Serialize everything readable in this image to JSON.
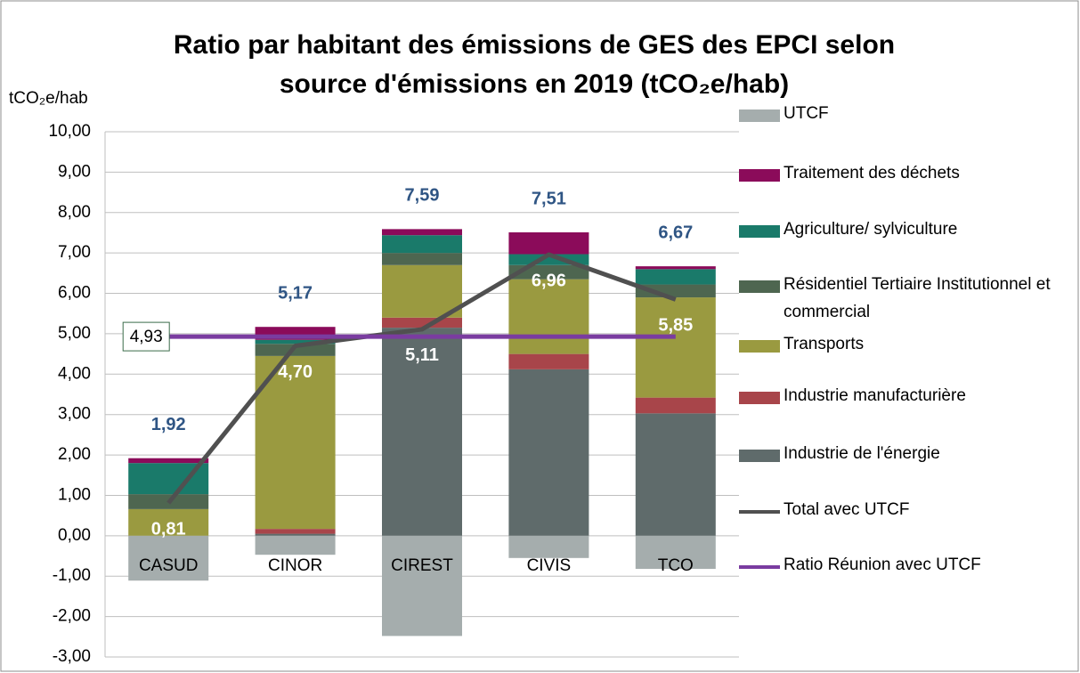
{
  "chart_data": {
    "type": "bar",
    "stacked": true,
    "title": [
      "Ratio par habitant des émissions de GES des EPCI selon",
      "source d'émissions en 2019 (tCO₂e/hab)"
    ],
    "y_label": "tCO₂e/hab",
    "categories": [
      "CASUD",
      "CINOR",
      "CIREST",
      "CIVIS",
      "TCO"
    ],
    "series": [
      {
        "name": "Industrie de l'énergie",
        "color": "#5f6b6b",
        "values": [
          0,
          0.05,
          5.15,
          4.12,
          3.03
        ]
      },
      {
        "name": "Industrie manufacturière",
        "color": "#a8454a",
        "values": [
          0,
          0.12,
          0.25,
          0.38,
          0.39
        ]
      },
      {
        "name": "Transports",
        "color": "#9a9a40",
        "values": [
          0.66,
          4.28,
          1.3,
          1.85,
          2.48
        ]
      },
      {
        "name": "Résidentiel Tertiaire Institutionnel et commercial",
        "color": "#4e6650",
        "values": [
          0.37,
          0.3,
          0.3,
          0.35,
          0.32
        ]
      },
      {
        "name": "Agriculture/ sylviculture",
        "color": "#1a7a6a",
        "values": [
          0.77,
          0.1,
          0.44,
          0.27,
          0.38
        ]
      },
      {
        "name": "Traitement des déchets",
        "color": "#8b0b5a",
        "values": [
          0.12,
          0.32,
          0.15,
          0.54,
          0.07
        ]
      },
      {
        "name": "UTCF",
        "color": "#a5adad",
        "values": [
          -1.11,
          -0.47,
          -2.48,
          -0.55,
          -0.82
        ]
      }
    ],
    "lines": [
      {
        "name": "Total avec UTCF",
        "color": "#505050",
        "values": [
          0.81,
          4.7,
          5.11,
          6.96,
          5.85
        ],
        "value_labels": [
          "0,81",
          "4,70",
          "5,11",
          "6,96",
          "5,85"
        ]
      },
      {
        "name": "Ratio Réunion avec UTCF",
        "color": "#7a3ca0",
        "values": [
          4.93,
          4.93,
          4.93,
          4.93,
          4.93
        ],
        "value_labels": [
          "4,93",
          null,
          null,
          null,
          null
        ]
      }
    ],
    "total_labels": {
      "values": [
        1.92,
        5.17,
        7.59,
        7.51,
        6.67
      ],
      "value_labels": [
        "1,92",
        "5,17",
        "7,59",
        "7,51",
        "6,67"
      ]
    },
    "ylim": [
      -3,
      10
    ],
    "yticks": [
      {
        "value": -3,
        "label": "-3,00"
      },
      {
        "value": -2,
        "label": "-2,00"
      },
      {
        "value": -1,
        "label": "-1,00"
      },
      {
        "value": 0,
        "label": "0,00"
      },
      {
        "value": 1,
        "label": "1,00"
      },
      {
        "value": 2,
        "label": "2,00"
      },
      {
        "value": 3,
        "label": "3,00"
      },
      {
        "value": 4,
        "label": "4,00"
      },
      {
        "value": 5,
        "label": "5,00"
      },
      {
        "value": 6,
        "label": "6,00"
      },
      {
        "value": 7,
        "label": "7,00"
      },
      {
        "value": 8,
        "label": "8,00"
      },
      {
        "value": 9,
        "label": "9,00"
      },
      {
        "value": 10,
        "label": "10,00"
      }
    ],
    "grid": true
  }
}
